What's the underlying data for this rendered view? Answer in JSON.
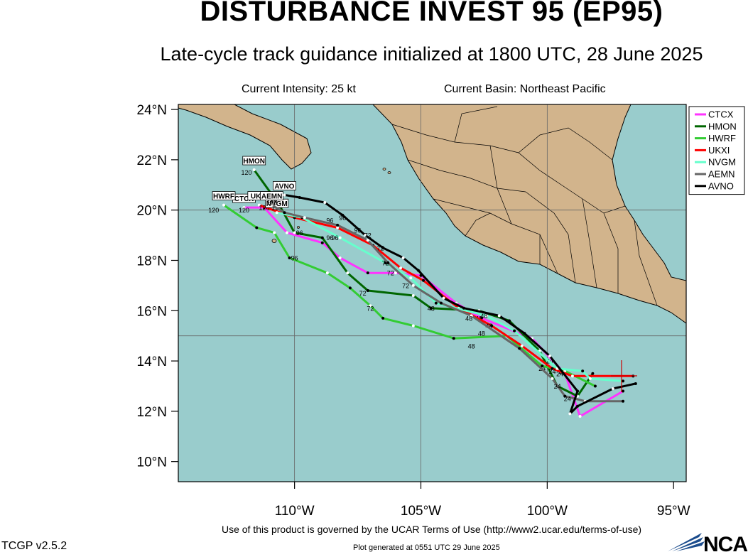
{
  "header": {
    "title": "DISTURBANCE INVEST 95 (EP95)",
    "subtitle": "Late-cycle track guidance initialized at 1800 UTC, 28 June 2025",
    "current_intensity": "Current Intensity: 25 kt",
    "current_basin": "Current Basin: Northeast Pacific"
  },
  "footer": {
    "terms": "Use of this product is governed by the UCAR Terms of Use (http://www2.ucar.edu/terms-of-use)",
    "generated": "Plot generated at 0551 UTC   29 June 2025",
    "version": "TCGP v2.5.2",
    "logo": "NCAR"
  },
  "colors": {
    "ocean": "#99cccc",
    "land": "#d2b48c",
    "CTCX": "#ff33ff",
    "HMON": "#006600",
    "HWRF": "#33cc33",
    "UKXI": "#ff0000",
    "NVGM": "#66ffcc",
    "AEMN": "#666666",
    "AVNO": "#000000"
  },
  "chart_data": {
    "type": "map",
    "extent": {
      "lon": [
        -114.6,
        -94.5
      ],
      "lat": [
        9.2,
        24.2
      ]
    },
    "lon_ticks": [
      {
        "value": -110,
        "label": "110°W"
      },
      {
        "value": -105,
        "label": "105°W"
      },
      {
        "value": -100,
        "label": "100°W"
      },
      {
        "value": -95,
        "label": "95°W"
      }
    ],
    "lat_ticks": [
      {
        "value": 10,
        "label": "10°N"
      },
      {
        "value": 12,
        "label": "12°N"
      },
      {
        "value": 14,
        "label": "14°N"
      },
      {
        "value": 16,
        "label": "16°N"
      },
      {
        "value": 18,
        "label": "18°N"
      },
      {
        "value": 20,
        "label": "20°N"
      },
      {
        "value": 22,
        "label": "22°N"
      },
      {
        "value": 24,
        "label": "24°N"
      }
    ],
    "grid": {
      "lon": [
        -110,
        -105,
        -100
      ],
      "lat": [
        15,
        20
      ]
    },
    "legend": {
      "placement": "top-right",
      "entries": [
        "CTCX",
        "HMON",
        "HWRF",
        "UKXI",
        "NVGM",
        "AEMN",
        "AVNO"
      ]
    },
    "tracks": [
      {
        "model": "CTCX",
        "label": "CTCX",
        "points": [
          [
            -97.0,
            12.8
          ],
          [
            -98.7,
            11.8
          ],
          [
            -99.3,
            13.5
          ],
          [
            -100.6,
            14.9
          ],
          [
            -102.6,
            15.7
          ],
          [
            -103.6,
            16.3
          ],
          [
            -105.0,
            17.4
          ],
          [
            -106.0,
            17.5
          ],
          [
            -107.1,
            17.5
          ],
          [
            -108.2,
            18.1
          ],
          [
            -108.9,
            18.7
          ],
          [
            -110.3,
            19.1
          ],
          [
            -111.2,
            20.1
          ],
          [
            -112.0,
            20.1
          ]
        ],
        "tau_labels": [
          [
            -99.4,
            13.5,
            "24"
          ],
          [
            -102.7,
            15.6,
            "48"
          ],
          [
            -106.2,
            17.4,
            "72"
          ],
          [
            -108.6,
            18.8,
            "96"
          ],
          [
            -112.0,
            19.9,
            "120"
          ]
        ]
      },
      {
        "model": "HMON",
        "label": "HMON",
        "points": [
          [
            -98.2,
            13.5
          ],
          [
            -98.8,
            12.6
          ],
          [
            -99.6,
            13.0
          ],
          [
            -100.3,
            14.4
          ],
          [
            -101.5,
            15.6
          ],
          [
            -102.7,
            16.0
          ],
          [
            -104.6,
            16.1
          ],
          [
            -105.3,
            16.6
          ],
          [
            -107.1,
            16.8
          ],
          [
            -107.9,
            17.5
          ],
          [
            -108.9,
            18.9
          ],
          [
            -110.0,
            19.1
          ],
          [
            -110.6,
            20.2
          ],
          [
            -111.6,
            21.6
          ]
        ],
        "tau_labels": [
          [
            -100.2,
            13.6,
            "24"
          ],
          [
            -104.6,
            16.0,
            "48"
          ],
          [
            -107.3,
            16.6,
            "72"
          ],
          [
            -109.8,
            19.0,
            "96"
          ],
          [
            -111.9,
            21.4,
            "120"
          ]
        ]
      },
      {
        "model": "HWRF",
        "label": "HWRF",
        "points": [
          [
            -98.1,
            13.0
          ],
          [
            -99.3,
            13.6
          ],
          [
            -100.2,
            13.8
          ],
          [
            -101.6,
            15.0
          ],
          [
            -103.7,
            14.9
          ],
          [
            -105.3,
            15.4
          ],
          [
            -106.5,
            15.7
          ],
          [
            -107.0,
            16.2
          ],
          [
            -107.8,
            16.9
          ],
          [
            -108.7,
            17.5
          ],
          [
            -110.2,
            18.1
          ],
          [
            -110.8,
            19.1
          ],
          [
            -111.5,
            19.3
          ],
          [
            -112.8,
            20.2
          ]
        ],
        "tau_labels": [
          [
            -99.5,
            13.4,
            "24"
          ],
          [
            -103.0,
            14.5,
            "48"
          ],
          [
            -107.0,
            16.0,
            "72"
          ],
          [
            -110.0,
            18.0,
            "96"
          ],
          [
            -113.2,
            19.9,
            "120"
          ]
        ]
      },
      {
        "model": "UKXI",
        "label": "UKXI",
        "points": [
          [
            -96.6,
            13.4
          ],
          [
            -99.0,
            13.4
          ],
          [
            -99.8,
            13.7
          ],
          [
            -101.0,
            14.6
          ],
          [
            -102.2,
            15.4
          ],
          [
            -103.5,
            16.1
          ],
          [
            -104.9,
            17.2
          ],
          [
            -105.8,
            17.7
          ],
          [
            -106.9,
            18.6
          ],
          [
            -108.3,
            19.3
          ],
          [
            -110.0,
            19.7
          ],
          [
            -111.4,
            20.2
          ]
        ],
        "tau_labels": [
          [
            -99.9,
            13.9,
            "24"
          ],
          [
            -102.3,
            15.3,
            "48"
          ],
          [
            -106.6,
            18.4,
            "72"
          ],
          [
            -108.6,
            19.5,
            "96"
          ],
          [
            -111.2,
            20.0,
            "120"
          ]
        ]
      },
      {
        "model": "NVGM",
        "label": "NVGM",
        "points": [
          [
            -97.0,
            13.2
          ],
          [
            -98.3,
            13.3
          ],
          [
            -98.6,
            13.6
          ],
          [
            -99.6,
            13.7
          ],
          [
            -101.3,
            15.2
          ],
          [
            -102.4,
            15.8
          ],
          [
            -104.4,
            16.3
          ],
          [
            -105.4,
            17.3
          ],
          [
            -106.4,
            17.9
          ],
          [
            -108.2,
            18.9
          ],
          [
            -109.7,
            19.7
          ],
          [
            -110.7,
            19.9
          ]
        ],
        "tau_labels": [
          [
            -99.8,
            13.5,
            "24"
          ],
          [
            -102.5,
            15.7,
            "48"
          ],
          [
            -106.4,
            17.8,
            "72"
          ],
          [
            -108.4,
            18.8,
            "96"
          ],
          [
            -110.7,
            20.0,
            "120"
          ]
        ]
      },
      {
        "model": "AEMN",
        "label": "AEMN",
        "points": [
          [
            -97.0,
            12.4
          ],
          [
            -98.5,
            12.4
          ],
          [
            -99.3,
            12.6
          ],
          [
            -99.8,
            13.3
          ],
          [
            -101.1,
            14.5
          ],
          [
            -103.0,
            15.8
          ],
          [
            -104.2,
            16.3
          ],
          [
            -105.3,
            17.0
          ],
          [
            -106.3,
            17.9
          ],
          [
            -107.1,
            18.8
          ],
          [
            -108.3,
            19.4
          ],
          [
            -109.6,
            19.7
          ],
          [
            -110.4,
            19.9
          ],
          [
            -110.9,
            20.2
          ]
        ],
        "tau_labels": [
          [
            -99.2,
            12.4,
            "24"
          ],
          [
            -102.6,
            15.0,
            "48"
          ],
          [
            -105.6,
            16.9,
            "72"
          ],
          [
            -107.5,
            19.1,
            "96"
          ],
          [
            -110.9,
            20.3,
            "120"
          ]
        ]
      },
      {
        "model": "AVNO",
        "label": "AVNO",
        "points": [
          [
            -96.5,
            13.1
          ],
          [
            -97.4,
            12.9
          ],
          [
            -98.8,
            12.2
          ],
          [
            -99.1,
            11.9
          ],
          [
            -98.8,
            12.8
          ],
          [
            -99.9,
            14.2
          ],
          [
            -100.9,
            15.1
          ],
          [
            -101.9,
            15.8
          ],
          [
            -103.3,
            16.1
          ],
          [
            -104.1,
            16.5
          ],
          [
            -105.1,
            17.6
          ],
          [
            -105.7,
            18.1
          ],
          [
            -106.5,
            18.5
          ],
          [
            -107.2,
            19.0
          ],
          [
            -108.1,
            19.8
          ],
          [
            -108.8,
            20.3
          ],
          [
            -109.8,
            20.5
          ],
          [
            -110.4,
            20.6
          ]
        ],
        "tau_labels": [
          [
            -99.6,
            12.9,
            "24"
          ],
          [
            -103.1,
            15.6,
            "48"
          ],
          [
            -107.1,
            18.9,
            "72"
          ],
          [
            -108.1,
            19.6,
            "96"
          ],
          [
            -110.9,
            20.2,
            "120"
          ]
        ]
      }
    ]
  }
}
